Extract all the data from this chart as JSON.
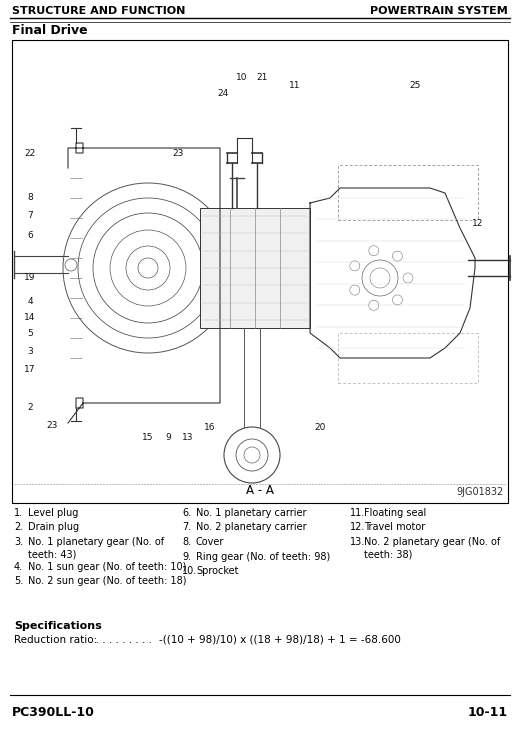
{
  "header_left": "STRUCTURE AND FUNCTION",
  "header_right": "POWERTRAIN SYSTEM",
  "section_title": "Final Drive",
  "diagram_label": "A - A",
  "diagram_ref": "9JG01832",
  "footer_left": "PC390LL-10",
  "footer_right": "10-11",
  "col1_items": [
    [
      "1.",
      "Level plug"
    ],
    [
      "2.",
      "Drain plug"
    ],
    [
      "3.",
      "No. 1 planetary gear (No. of",
      "teeth: 43)"
    ],
    [
      "4.",
      "No. 1 sun gear (No. of teeth: 10)"
    ],
    [
      "5.",
      "No. 2 sun gear (No. of teeth: 18)"
    ]
  ],
  "col2_items": [
    [
      "6.",
      "No. 1 planetary carrier"
    ],
    [
      "7.",
      "No. 2 planetary carrier"
    ],
    [
      "8.",
      "Cover"
    ],
    [
      "9.",
      "Ring gear (No. of teeth: 98)"
    ],
    [
      "10.",
      "Sprocket"
    ]
  ],
  "col3_items": [
    [
      "11.",
      "Floating seal"
    ],
    [
      "12.",
      "Travel motor"
    ],
    [
      "13.",
      "No. 2 planetary gear (No. of",
      "teeth: 38)"
    ]
  ],
  "specs_title": "Specifications",
  "specs_label": "Reduction ratio:",
  "specs_dots": ". . . . . . . . . .",
  "specs_formula": "-((10 + 98)/10) x ((18 + 98)/18) + 1 = -68.600",
  "bg_color": "#ffffff",
  "text_color": "#000000"
}
